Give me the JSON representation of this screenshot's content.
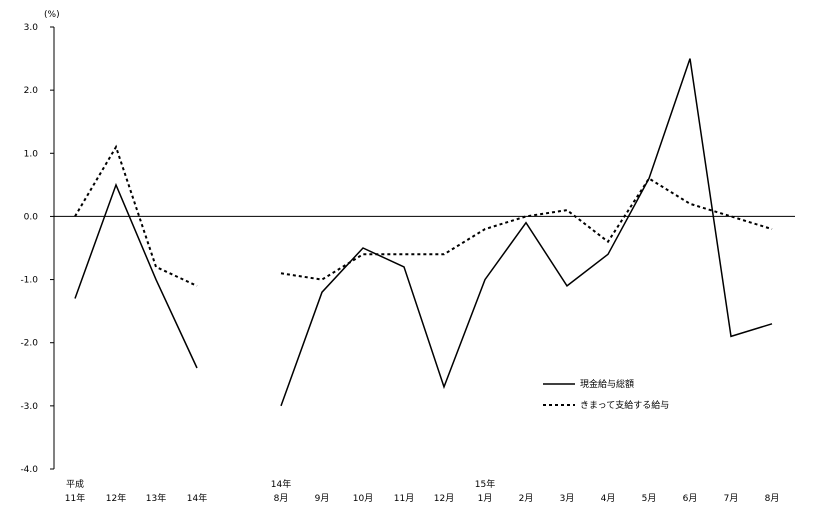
{
  "chart_data": {
    "type": "line",
    "unit_label": "(%)",
    "ylim": [
      -4.0,
      3.0
    ],
    "yticks": [
      "3.0",
      "2.0",
      "1.0",
      "0.0",
      "-1.0",
      "-2.0",
      "-3.0",
      "-4.0"
    ],
    "grid": false,
    "legend_position": "bottom-right",
    "categories": [
      {
        "top": "平成",
        "bottom": "11年"
      },
      {
        "top": "",
        "bottom": "12年"
      },
      {
        "top": "",
        "bottom": "13年"
      },
      {
        "top": "",
        "bottom": "14年"
      },
      {
        "top": "14年",
        "bottom": "8月"
      },
      {
        "top": "",
        "bottom": "9月"
      },
      {
        "top": "",
        "bottom": "10月"
      },
      {
        "top": "",
        "bottom": "11月"
      },
      {
        "top": "",
        "bottom": "12月"
      },
      {
        "top": "15年",
        "bottom": "1月"
      },
      {
        "top": "",
        "bottom": "2月"
      },
      {
        "top": "",
        "bottom": "3月"
      },
      {
        "top": "",
        "bottom": "4月"
      },
      {
        "top": "",
        "bottom": "5月"
      },
      {
        "top": "",
        "bottom": "6月"
      },
      {
        "top": "",
        "bottom": "7月"
      },
      {
        "top": "",
        "bottom": "8月"
      }
    ],
    "series": [
      {
        "name": "現金給与総額",
        "style": "solid",
        "segments": [
          {
            "start": 0,
            "values": [
              -1.3,
              0.5,
              -1.0,
              -2.4
            ]
          },
          {
            "start": 4,
            "values": [
              -3.0,
              -1.2,
              -0.5,
              -0.8,
              -2.7,
              -1.0,
              -0.1,
              -1.1,
              -0.6,
              0.6,
              2.5,
              -1.9,
              -1.7
            ]
          }
        ]
      },
      {
        "name": "きまって支給する給与",
        "style": "dotted",
        "segments": [
          {
            "start": 0,
            "values": [
              0.0,
              1.1,
              -0.8,
              -1.1
            ]
          },
          {
            "start": 4,
            "values": [
              -0.9,
              -1.0,
              -0.6,
              -0.6,
              -0.6,
              -0.2,
              0.0,
              0.1,
              -0.4,
              0.6,
              0.2,
              0.0,
              -0.2
            ]
          }
        ]
      }
    ]
  }
}
